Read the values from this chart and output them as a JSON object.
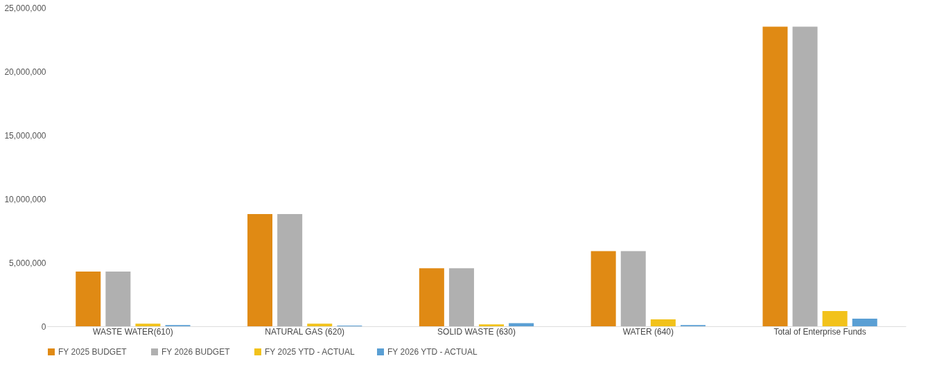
{
  "chart_data": {
    "type": "bar",
    "categories": [
      "WASTE WATER(610)",
      "NATURAL GAS (620)",
      "SOLID WASTE (630)",
      "WATER (640)",
      "Total of Enterprise Funds"
    ],
    "series": [
      {
        "name": "FY 2025  BUDGET",
        "color": "#e08a14",
        "values": [
          4300000,
          8800000,
          4550000,
          5900000,
          23500000
        ]
      },
      {
        "name": "FY 2026  BUDGET",
        "color": "#b0b0b0",
        "values": [
          4300000,
          8800000,
          4550000,
          5900000,
          23500000
        ]
      },
      {
        "name": "FY 2025 YTD - ACTUAL",
        "color": "#f2c21b",
        "values": [
          200000,
          200000,
          150000,
          550000,
          1200000
        ]
      },
      {
        "name": "FY 2026 YTD - ACTUAL",
        "color": "#5a9fd4",
        "values": [
          100000,
          50000,
          250000,
          100000,
          600000
        ]
      }
    ],
    "ylim": [
      0,
      25000000
    ],
    "yticks": [
      {
        "value": 0,
        "label": "0"
      },
      {
        "value": 5000000,
        "label": "5,000,000"
      },
      {
        "value": 10000000,
        "label": "10,000,000"
      },
      {
        "value": 15000000,
        "label": "15,000,000"
      },
      {
        "value": 20000000,
        "label": "20,000,000"
      },
      {
        "value": 25000000,
        "label": "25,000,000"
      }
    ],
    "grid": false,
    "legend": "bottom"
  }
}
